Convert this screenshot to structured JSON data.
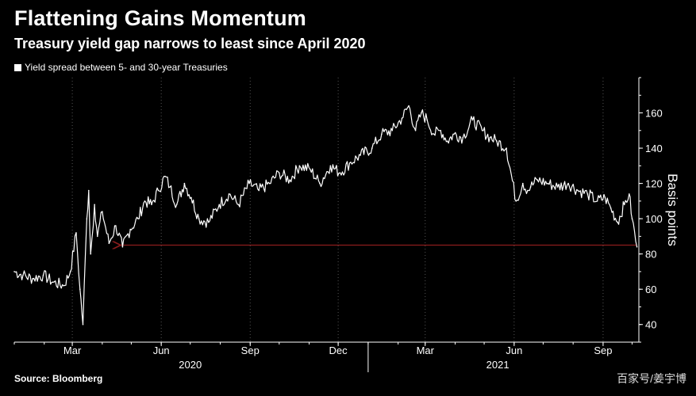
{
  "header": {
    "title": "Flattening Gains Momentum",
    "subtitle": "Treasury yield gap narrows to least since April 2020"
  },
  "footer": {
    "source": "Source: Bloomberg",
    "watermark": "百家号/姜宇博"
  },
  "colors": {
    "background": "#000000",
    "line": "#ffffff",
    "reference_arrow": "#8b1c1c",
    "grid": "#555555"
  },
  "chart_data": {
    "type": "line",
    "title": "Flattening Gains Momentum",
    "subtitle": "Treasury yield gap narrows to least since April 2020",
    "legend": [
      "Yield spread between 5- and 30-year Treasuries"
    ],
    "ylabel": "Basis points",
    "ylim": [
      30,
      180
    ],
    "yticks": [
      40,
      60,
      80,
      100,
      120,
      140,
      160
    ],
    "y_axis_side": "right",
    "grid": "vertical dotted at month ticks",
    "xlim": [
      "2020-01-01",
      "2021-10-08"
    ],
    "x_ticks": [
      {
        "label": "Mar",
        "date": "2020-03-01"
      },
      {
        "label": "Jun",
        "date": "2020-06-01"
      },
      {
        "label": "Sep",
        "date": "2020-09-01"
      },
      {
        "label": "Dec",
        "date": "2020-12-01"
      },
      {
        "label": "Mar",
        "date": "2021-03-01"
      },
      {
        "label": "Jun",
        "date": "2021-06-01"
      },
      {
        "label": "Sep",
        "date": "2021-09-01"
      }
    ],
    "years": [
      {
        "label": "2020",
        "center": "2020-07-01"
      },
      {
        "label": "2021",
        "center": "2021-05-15"
      }
    ],
    "year_divider": "2021-01-01",
    "reference_line": {
      "y": 85,
      "from": "2020-04-20",
      "to": "2021-10-06",
      "style": "arrow"
    },
    "series": [
      {
        "name": "Yield spread between 5- and 30-year Treasuries",
        "color": "#ffffff",
        "x": [
          "2020-01-01",
          "2020-01-10",
          "2020-01-20",
          "2020-01-31",
          "2020-02-10",
          "2020-02-21",
          "2020-02-28",
          "2020-03-05",
          "2020-03-09",
          "2020-03-12",
          "2020-03-16",
          "2020-03-18",
          "2020-03-20",
          "2020-03-24",
          "2020-03-27",
          "2020-04-01",
          "2020-04-08",
          "2020-04-15",
          "2020-04-22",
          "2020-04-30",
          "2020-05-08",
          "2020-05-15",
          "2020-05-22",
          "2020-05-29",
          "2020-06-05",
          "2020-06-10",
          "2020-06-17",
          "2020-06-25",
          "2020-07-02",
          "2020-07-10",
          "2020-07-20",
          "2020-07-31",
          "2020-08-10",
          "2020-08-20",
          "2020-08-31",
          "2020-09-10",
          "2020-09-21",
          "2020-10-01",
          "2020-10-12",
          "2020-10-22",
          "2020-11-02",
          "2020-11-12",
          "2020-11-23",
          "2020-12-03",
          "2020-12-14",
          "2020-12-24",
          "2021-01-05",
          "2021-01-15",
          "2021-01-26",
          "2021-02-05",
          "2021-02-12",
          "2021-02-19",
          "2021-02-25",
          "2021-03-03",
          "2021-03-10",
          "2021-03-17",
          "2021-03-24",
          "2021-03-31",
          "2021-04-09",
          "2021-04-19",
          "2021-04-29",
          "2021-05-07",
          "2021-05-14",
          "2021-05-24",
          "2021-06-03",
          "2021-06-10",
          "2021-06-15",
          "2021-06-18",
          "2021-06-25",
          "2021-07-06",
          "2021-07-16",
          "2021-07-27",
          "2021-08-06",
          "2021-08-16",
          "2021-08-26",
          "2021-09-03",
          "2021-09-09",
          "2021-09-16",
          "2021-09-23",
          "2021-09-28",
          "2021-10-01",
          "2021-10-06"
        ],
        "y": [
          70,
          68,
          66,
          68,
          64,
          62,
          70,
          92,
          60,
          40,
          100,
          116,
          80,
          108,
          90,
          104,
          86,
          96,
          84,
          94,
          100,
          110,
          108,
          116,
          124,
          118,
          108,
          120,
          112,
          100,
          98,
          108,
          114,
          108,
          120,
          116,
          120,
          126,
          122,
          130,
          128,
          120,
          130,
          126,
          132,
          136,
          140,
          148,
          150,
          157,
          164,
          150,
          160,
          156,
          148,
          150,
          144,
          148,
          146,
          156,
          150,
          146,
          144,
          140,
          110,
          120,
          116,
          118,
          122,
          120,
          118,
          120,
          116,
          114,
          110,
          112,
          106,
          98,
          108,
          114,
          100,
          84
        ]
      }
    ]
  }
}
